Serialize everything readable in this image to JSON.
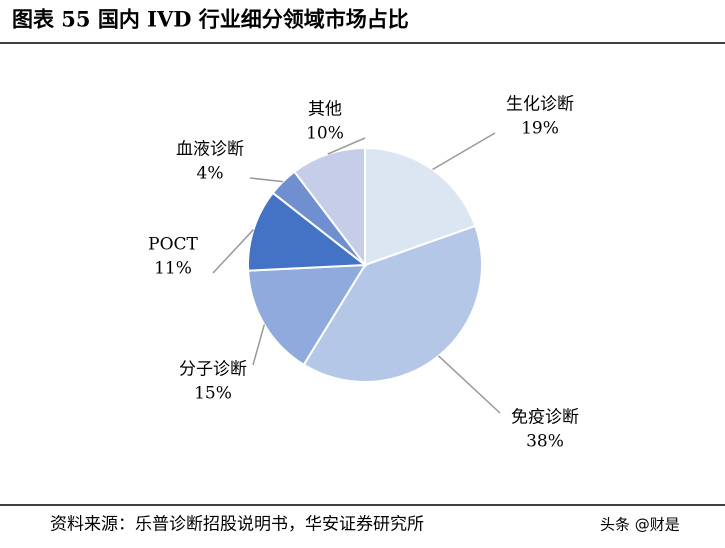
{
  "chart_data": {
    "type": "pie",
    "title": "图表 55 国内 IVD 行业细分领域市场占比",
    "categories": [
      "生化诊断",
      "免疫诊断",
      "分子诊断",
      "POCT",
      "血液诊断",
      "其他"
    ],
    "values": [
      19,
      38,
      15,
      11,
      4,
      10
    ],
    "value_labels": [
      "19%",
      "38%",
      "15%",
      "11%",
      "4%",
      "10%"
    ],
    "colors": [
      "#dce6f2",
      "#b4c7e7",
      "#8faadc",
      "#4472c4",
      "#6f8fd0",
      "#c5cde8"
    ],
    "source": "资料来源：乐普诊断招股说明书，华安证券研究所",
    "watermark": "头条 @财是"
  }
}
